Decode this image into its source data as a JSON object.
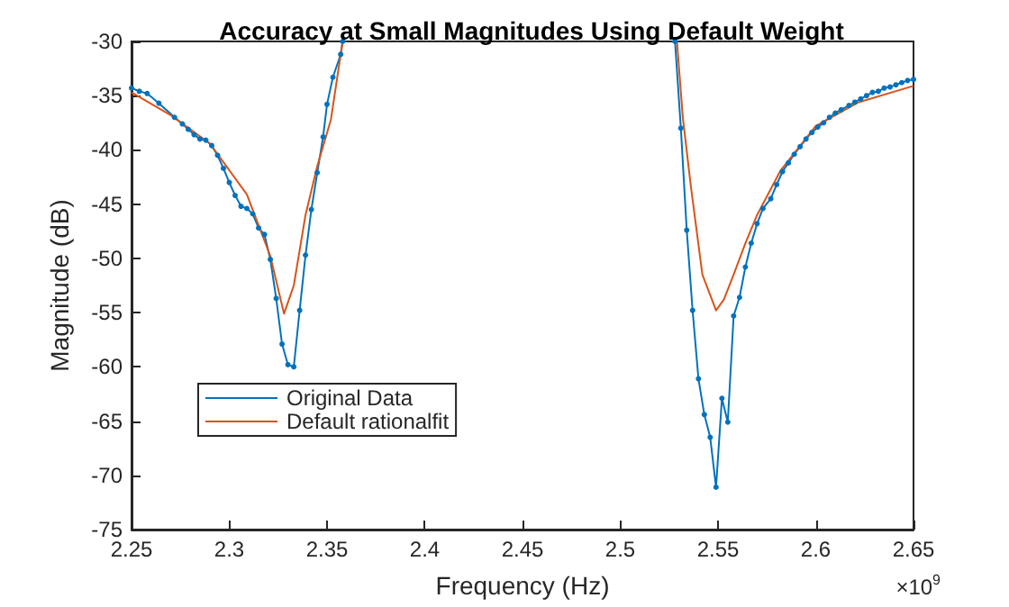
{
  "chart_data": {
    "type": "line",
    "title": "Accuracy at Small Magnitudes Using Default Weight",
    "xlabel": "Frequency (Hz)",
    "ylabel": "Magnitude (dB)",
    "annotations": [
      "×10$^{9}$"
    ],
    "xlim": [
      2.25,
      2.65
    ],
    "xticks": [
      2.25,
      2.3,
      2.35,
      2.4,
      2.45,
      2.5,
      2.55,
      2.6,
      2.65
    ],
    "ylim": [
      -75,
      -30
    ],
    "yticks": [
      -75,
      -70,
      -65,
      -60,
      -55,
      -50,
      -45,
      -40,
      -35,
      -30
    ],
    "grid": false,
    "legend": "bottom left",
    "series": [
      {
        "name": "Original Data",
        "color": "#0072bd",
        "marker": "circle",
        "x": [
          2.25,
          2.254,
          2.258,
          2.264,
          2.272,
          2.276,
          2.279,
          2.282,
          2.285,
          2.288,
          2.291,
          2.294,
          2.297,
          2.3,
          2.303,
          2.306,
          2.309,
          2.312,
          2.315,
          2.318,
          2.321,
          2.324,
          2.327,
          2.33,
          2.333,
          2.336,
          2.339,
          2.342,
          2.345,
          2.348,
          2.35,
          2.353,
          2.357,
          2.358,
          2.45,
          2.528,
          2.531,
          2.534,
          2.537,
          2.54,
          2.543,
          2.546,
          2.549,
          2.552,
          2.555,
          2.558,
          2.561,
          2.564,
          2.567,
          2.57,
          2.573,
          2.577,
          2.58,
          2.583,
          2.586,
          2.589,
          2.592,
          2.595,
          2.598,
          2.601,
          2.604,
          2.607,
          2.61,
          2.613,
          2.617,
          2.62,
          2.623,
          2.626,
          2.629,
          2.632,
          2.635,
          2.638,
          2.641,
          2.644,
          2.647,
          2.65
        ],
        "values": [
          -34.3,
          -34.6,
          -34.8,
          -35.7,
          -37.0,
          -37.6,
          -38.1,
          -38.6,
          -39.0,
          -39.1,
          -39.6,
          -40.5,
          -41.7,
          -43.0,
          -44.2,
          -45.2,
          -45.4,
          -45.9,
          -47.2,
          -47.8,
          -50.1,
          -53.7,
          -57.9,
          -59.8,
          -60.0,
          -54.8,
          -49.7,
          -45.5,
          -42.1,
          -38.8,
          -35.8,
          -33.3,
          -31.2,
          -30,
          null,
          -30,
          -38.0,
          -47.4,
          -54.8,
          -61.1,
          -64.4,
          -66.5,
          -71.1,
          -62.9,
          -65.1,
          -55.3,
          -53.6,
          -50.8,
          -48.6,
          -46.8,
          -45.4,
          -44.5,
          -43.2,
          -42.0,
          -41.2,
          -40.4,
          -39.7,
          -39.0,
          -38.4,
          -37.9,
          -37.5,
          -37.0,
          -36.6,
          -36.3,
          -35.9,
          -35.6,
          -35.3,
          -35.0,
          -34.7,
          -34.6,
          -34.3,
          -34.2,
          -34.0,
          -33.8,
          -33.6,
          -33.5
        ]
      },
      {
        "name": "Default rationalfit",
        "color": "#d95319",
        "marker": "none",
        "x": [
          2.25,
          2.27,
          2.29,
          2.309,
          2.321,
          2.328,
          2.333,
          2.339,
          2.345,
          2.352,
          2.358,
          2.45,
          2.529,
          2.532,
          2.536,
          2.542,
          2.549,
          2.553,
          2.558,
          2.564,
          2.57,
          2.582,
          2.6,
          2.622,
          2.65
        ],
        "values": [
          -34.7,
          -36.8,
          -39.4,
          -44.1,
          -49.8,
          -55.1,
          -52.5,
          -46.0,
          -41.5,
          -37.2,
          -30,
          null,
          -30,
          -37.0,
          -43.2,
          -51.5,
          -54.8,
          -53.8,
          -51.5,
          -48.6,
          -46.0,
          -41.9,
          -37.8,
          -35.6,
          -34.1
        ]
      }
    ]
  }
}
